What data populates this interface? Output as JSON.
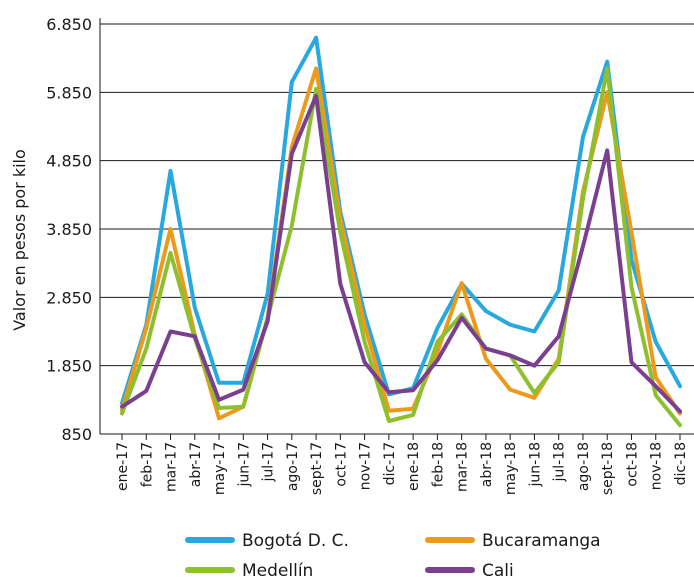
{
  "chart_data": {
    "type": "line",
    "title": "",
    "xlabel": "",
    "ylabel": "Valor en pesos por kilo",
    "ylim": [
      850,
      6850
    ],
    "yticks": [
      850,
      1850,
      2850,
      3850,
      4850,
      5850,
      6850
    ],
    "ytick_labels": [
      "850",
      "1.850",
      "2.850",
      "3.850",
      "4.850",
      "5.850",
      "6.850"
    ],
    "grid": "horizontal",
    "legend_position": "bottom",
    "categories": [
      "ene-17",
      "feb-17",
      "mar-17",
      "abr-17",
      "may-17",
      "jun-17",
      "jul-17",
      "ago-17",
      "sept-17",
      "oct-17",
      "nov-17",
      "dic-17",
      "ene-18",
      "feb-18",
      "mar-18",
      "abr-18",
      "may-18",
      "jun-18",
      "jul-18",
      "ago-18",
      "sept-18",
      "oct-18",
      "nov-18",
      "dic-18"
    ],
    "series": [
      {
        "name": "Bogotá D. C.",
        "color": "#29a8e0",
        "values": [
          1300,
          2450,
          4700,
          2700,
          1600,
          1600,
          2900,
          6000,
          6650,
          4100,
          2600,
          1430,
          1520,
          2400,
          3050,
          2650,
          2450,
          2350,
          2950,
          5200,
          6300,
          3400,
          2200,
          1550
        ]
      },
      {
        "name": "Bucaramanga",
        "color": "#ec9a1c",
        "values": [
          1200,
          2400,
          3850,
          2300,
          1080,
          1250,
          2550,
          5050,
          6200,
          4000,
          2450,
          1190,
          1220,
          2050,
          3060,
          1950,
          1500,
          1380,
          1950,
          4400,
          5850,
          3800,
          1680,
          1150
        ]
      },
      {
        "name": "Medellín",
        "color": "#8dbf2e",
        "values": [
          1150,
          2100,
          3500,
          2250,
          1230,
          1250,
          2550,
          3900,
          5900,
          3800,
          2200,
          1040,
          1130,
          2200,
          2600,
          2100,
          2000,
          1450,
          1900,
          4300,
          6200,
          3000,
          1420,
          980
        ]
      },
      {
        "name": "Cali",
        "color": "#7b3f8f",
        "values": [
          1250,
          1480,
          2350,
          2280,
          1350,
          1500,
          2500,
          4950,
          5800,
          3050,
          1900,
          1460,
          1490,
          1930,
          2550,
          2100,
          2000,
          1850,
          2280,
          3600,
          5000,
          1900,
          1550,
          1180
        ]
      }
    ]
  }
}
